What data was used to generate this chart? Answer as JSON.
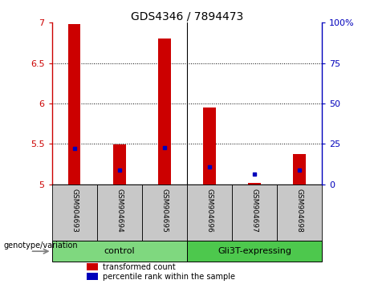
{
  "title": "GDS4346 / 7894473",
  "samples": [
    "GSM904693",
    "GSM904694",
    "GSM904695",
    "GSM904696",
    "GSM904697",
    "GSM904698"
  ],
  "red_values": [
    6.98,
    5.49,
    6.8,
    5.95,
    5.02,
    5.37
  ],
  "blue_values": [
    5.44,
    5.18,
    5.45,
    5.22,
    5.13,
    5.18
  ],
  "ylim": [
    5.0,
    7.0
  ],
  "yticks_left": [
    5.0,
    5.5,
    6.0,
    6.5,
    7.0
  ],
  "yticks_right": [
    0,
    25,
    50,
    75,
    100
  ],
  "y_right_labels": [
    "0",
    "25",
    "50",
    "75",
    "100%"
  ],
  "grid_lines": [
    5.5,
    6.0,
    6.5
  ],
  "groups": [
    {
      "label": "control",
      "samples": [
        0,
        1,
        2
      ],
      "color": "#7FD87F"
    },
    {
      "label": "Gli3T-expressing",
      "samples": [
        3,
        4,
        5
      ],
      "color": "#4DC84D"
    }
  ],
  "bar_width": 0.28,
  "red_color": "#CC0000",
  "blue_color": "#0000BB",
  "bg_label": "#C8C8C8",
  "legend_red": "transformed count",
  "legend_blue": "percentile rank within the sample",
  "genotype_label": "genotype/variation",
  "ymin": 5.0,
  "fig_width": 4.61,
  "fig_height": 3.54,
  "dpi": 100
}
